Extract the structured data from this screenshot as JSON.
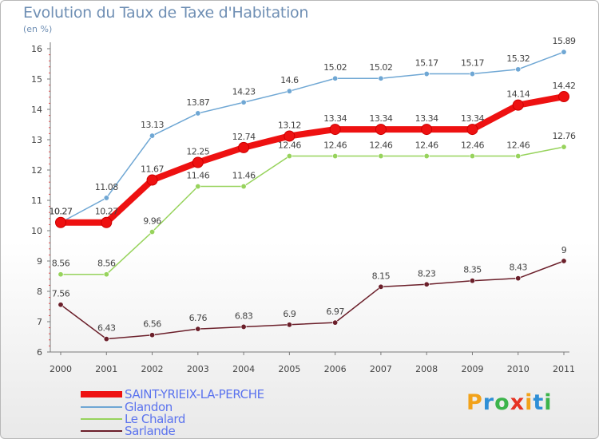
{
  "chart_data": {
    "type": "line",
    "title": "Evolution du Taux de Taxe d'Habitation",
    "subtitle": "(en %)",
    "x": [
      "2000",
      "2001",
      "2002",
      "2003",
      "2004",
      "2005",
      "2006",
      "2007",
      "2008",
      "2009",
      "2010",
      "2011"
    ],
    "ylim": [
      6,
      16
    ],
    "yticks": [
      "6",
      "7",
      "8",
      "9",
      "10",
      "11",
      "12",
      "13",
      "14",
      "15",
      "16"
    ],
    "grid": false,
    "legend_position": "bottom-left",
    "series": [
      {
        "name": "Glandon",
        "color": "#6fa7d4",
        "values": [
          10.27,
          11.08,
          13.13,
          13.87,
          14.23,
          14.6,
          15.02,
          15.02,
          15.17,
          15.17,
          15.32,
          15.89
        ],
        "labels": [
          "10.27",
          "11.08",
          "13.13",
          "13.87",
          "14.23",
          "14.6",
          "15.02",
          "15.02",
          "15.17",
          "15.17",
          "15.32",
          "15.89"
        ]
      },
      {
        "name": "Le Chalard",
        "color": "#97d35c",
        "values": [
          8.56,
          8.56,
          9.96,
          11.46,
          11.46,
          12.46,
          12.46,
          12.46,
          12.46,
          12.46,
          12.46,
          12.76
        ],
        "labels": [
          "8.56",
          "8.56",
          "9.96",
          "11.46",
          "11.46",
          "12.46",
          "12.46",
          "12.46",
          "12.46",
          "12.46",
          "12.46",
          "12.76"
        ]
      },
      {
        "name": "Sarlande",
        "color": "#6b1f2a",
        "values": [
          7.56,
          6.43,
          6.56,
          6.76,
          6.83,
          6.9,
          6.97,
          8.15,
          8.23,
          8.35,
          8.43,
          9
        ],
        "labels": [
          "7.56",
          "6.43",
          "6.56",
          "6.76",
          "6.83",
          "6.9",
          "6.97",
          "8.15",
          "8.23",
          "8.35",
          "8.43",
          "9"
        ]
      },
      {
        "name": "SAINT-YRIEIX-LA-PERCHE",
        "color": "#ee1111",
        "values": [
          10.27,
          10.27,
          11.67,
          12.25,
          12.74,
          13.12,
          13.34,
          13.34,
          13.34,
          13.34,
          14.14,
          14.42
        ],
        "labels": [
          "10.27",
          "10.27",
          "11.67",
          "12.25",
          "12.74",
          "13.12",
          "13.34",
          "13.34",
          "13.34",
          "13.34",
          "14.14",
          "14.42"
        ]
      }
    ],
    "legend": [
      "SAINT-YRIEIX-LA-PERCHE",
      "Glandon",
      "Le Chalard",
      "Sarlande"
    ]
  },
  "logo": {
    "letters": [
      "P",
      "r",
      "o",
      "x",
      "i",
      "t",
      "i"
    ],
    "colors": [
      "#f2a21a",
      "#2f8fd6",
      "#3cb44b",
      "#e63323",
      "#f2a21a",
      "#2f8fd6",
      "#3cb44b"
    ]
  }
}
